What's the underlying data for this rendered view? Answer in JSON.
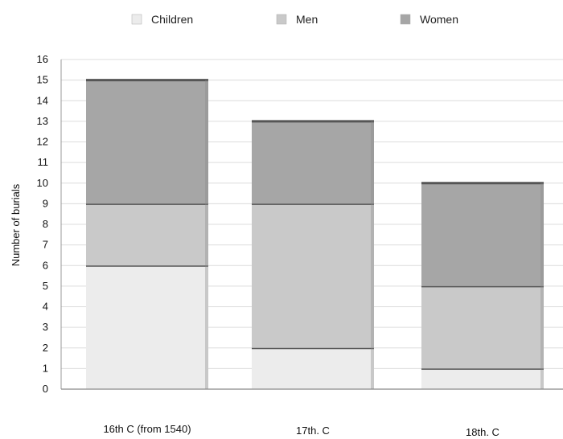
{
  "chart_data": {
    "type": "bar",
    "stacked": true,
    "categories": [
      "16th C (from 1540)",
      "17th. C",
      "18th. C"
    ],
    "series": [
      {
        "name": "Children",
        "values": [
          6,
          2,
          1
        ],
        "color": "#ececec"
      },
      {
        "name": "Men",
        "values": [
          3,
          7,
          4
        ],
        "color": "#c9c9c9"
      },
      {
        "name": "Women",
        "values": [
          6,
          4,
          5
        ],
        "color": "#a6a6a6"
      }
    ],
    "title": "",
    "xlabel": "",
    "ylabel": "Number of burials",
    "ylim": [
      0,
      16
    ],
    "yticks": [
      0,
      1,
      2,
      3,
      4,
      5,
      6,
      7,
      8,
      9,
      10,
      11,
      12,
      13,
      14,
      15,
      16
    ],
    "grid": true,
    "legend_position": "top"
  }
}
